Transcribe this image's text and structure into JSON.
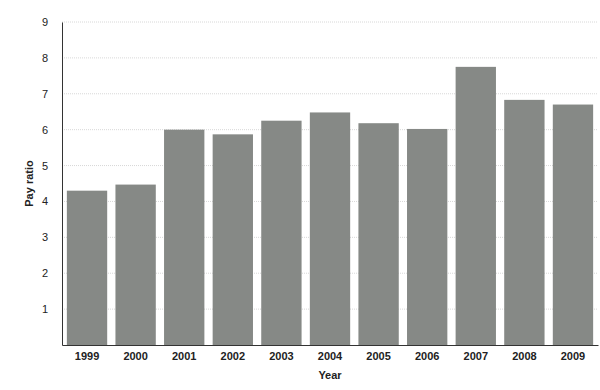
{
  "chart_data": {
    "type": "bar",
    "x_label": "Year",
    "y_label": "Pay ratio",
    "categories": [
      "1999",
      "2000",
      "2001",
      "2002",
      "2003",
      "2004",
      "2005",
      "2006",
      "2007",
      "2008",
      "2009"
    ],
    "values": [
      4.3,
      4.47,
      6.0,
      5.87,
      6.25,
      6.48,
      6.18,
      6.02,
      7.75,
      6.83,
      6.7
    ],
    "color": "#868986",
    "ylim": [
      0,
      9
    ],
    "yticks": [
      1,
      2,
      3,
      4,
      5,
      6,
      7,
      8,
      9
    ],
    "grid": true
  }
}
